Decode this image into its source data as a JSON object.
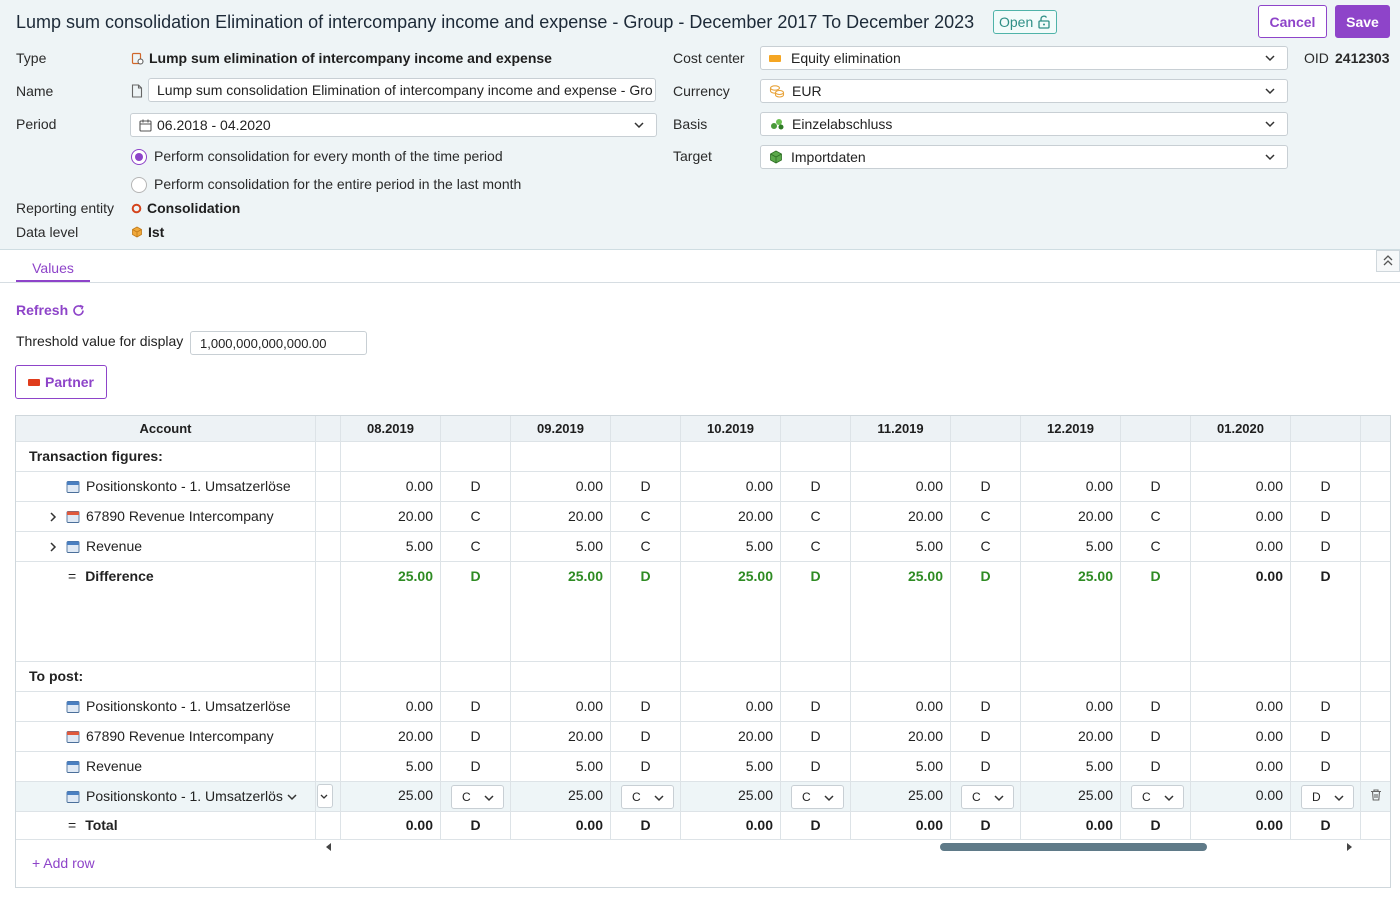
{
  "header": {
    "title": "Lump sum consolidation Elimination of intercompany income and expense - Group - December 2017 To December 2023",
    "status": "Open",
    "cancel_label": "Cancel",
    "save_label": "Save",
    "oid_label": "OID",
    "oid_value": "2412303"
  },
  "form": {
    "type_label": "Type",
    "type_value": "Lump sum elimination of intercompany income and expense",
    "name_label": "Name",
    "name_value": "Lump sum consolidation Elimination of intercompany income and expense - Gro",
    "period_label": "Period",
    "period_value": "06.2018 - 04.2020",
    "radio_every_month": "Perform consolidation for every month of the time period",
    "radio_entire_period": "Perform consolidation for the entire period in the last month",
    "reporting_entity_label": "Reporting entity",
    "reporting_entity_value": "Consolidation",
    "data_level_label": "Data level",
    "data_level_value": "Ist",
    "cost_center_label": "Cost center",
    "cost_center_value": "Equity elimination",
    "currency_label": "Currency",
    "currency_value": "EUR",
    "basis_label": "Basis",
    "basis_value": "Einzelabschluss",
    "target_label": "Target",
    "target_value": "Importdaten"
  },
  "tabs": {
    "values": "Values"
  },
  "toolbar": {
    "refresh": "Refresh",
    "threshold_label": "Threshold value for display",
    "threshold_value": "1,000,000,000,000.00",
    "partner": "Partner"
  },
  "table": {
    "account_header": "Account",
    "months": [
      "08.2019",
      "09.2019",
      "10.2019",
      "11.2019",
      "12.2019",
      "01.2020"
    ],
    "section_transaction": "Transaction figures:",
    "section_topost": "To post:",
    "transaction_rows": [
      {
        "label": "Positionskonto - 1. Umsatzerlöse",
        "expand": false,
        "icon": "blue",
        "values": [
          [
            "0.00",
            "D"
          ],
          [
            "0.00",
            "D"
          ],
          [
            "0.00",
            "D"
          ],
          [
            "0.00",
            "D"
          ],
          [
            "0.00",
            "D"
          ],
          [
            "0.00",
            "D"
          ]
        ]
      },
      {
        "label": "67890 Revenue Intercompany",
        "expand": true,
        "icon": "red",
        "values": [
          [
            "20.00",
            "C"
          ],
          [
            "20.00",
            "C"
          ],
          [
            "20.00",
            "C"
          ],
          [
            "20.00",
            "C"
          ],
          [
            "20.00",
            "C"
          ],
          [
            "0.00",
            "D"
          ]
        ]
      },
      {
        "label": "Revenue",
        "expand": true,
        "icon": "blue",
        "values": [
          [
            "5.00",
            "C"
          ],
          [
            "5.00",
            "C"
          ],
          [
            "5.00",
            "C"
          ],
          [
            "5.00",
            "C"
          ],
          [
            "5.00",
            "C"
          ],
          [
            "0.00",
            "D"
          ]
        ]
      }
    ],
    "difference": {
      "label": "Difference",
      "prefix": "=",
      "values": [
        [
          "25.00",
          "D"
        ],
        [
          "25.00",
          "D"
        ],
        [
          "25.00",
          "D"
        ],
        [
          "25.00",
          "D"
        ],
        [
          "25.00",
          "D"
        ],
        [
          "0.00",
          "D"
        ]
      ]
    },
    "topost_rows": [
      {
        "label": "Positionskonto - 1. Umsatzerlöse",
        "icon": "blue",
        "values": [
          [
            "0.00",
            "D"
          ],
          [
            "0.00",
            "D"
          ],
          [
            "0.00",
            "D"
          ],
          [
            "0.00",
            "D"
          ],
          [
            "0.00",
            "D"
          ],
          [
            "0.00",
            "D"
          ]
        ]
      },
      {
        "label": "67890 Revenue Intercompany",
        "icon": "red",
        "values": [
          [
            "20.00",
            "D"
          ],
          [
            "20.00",
            "D"
          ],
          [
            "20.00",
            "D"
          ],
          [
            "20.00",
            "D"
          ],
          [
            "20.00",
            "D"
          ],
          [
            "0.00",
            "D"
          ]
        ]
      },
      {
        "label": "Revenue",
        "icon": "blue",
        "values": [
          [
            "5.00",
            "D"
          ],
          [
            "5.00",
            "D"
          ],
          [
            "5.00",
            "D"
          ],
          [
            "5.00",
            "D"
          ],
          [
            "5.00",
            "D"
          ],
          [
            "0.00",
            "D"
          ]
        ]
      }
    ],
    "edit_row": {
      "label": "Positionskonto - 1. Umsatzerlös",
      "values": [
        [
          "25.00",
          "C"
        ],
        [
          "25.00",
          "C"
        ],
        [
          "25.00",
          "C"
        ],
        [
          "25.00",
          "C"
        ],
        [
          "25.00",
          "C"
        ],
        [
          "0.00",
          "D"
        ]
      ]
    },
    "total": {
      "label": "Total",
      "prefix": "=",
      "values": [
        [
          "0.00",
          "D"
        ],
        [
          "0.00",
          "D"
        ],
        [
          "0.00",
          "D"
        ],
        [
          "0.00",
          "D"
        ],
        [
          "0.00",
          "D"
        ],
        [
          "0.00",
          "D"
        ]
      ]
    },
    "add_row": "+ Add row"
  },
  "colors": {
    "accent": "#8e44c9",
    "green": "#2e8b23",
    "header_bg": "#eef4f6"
  }
}
